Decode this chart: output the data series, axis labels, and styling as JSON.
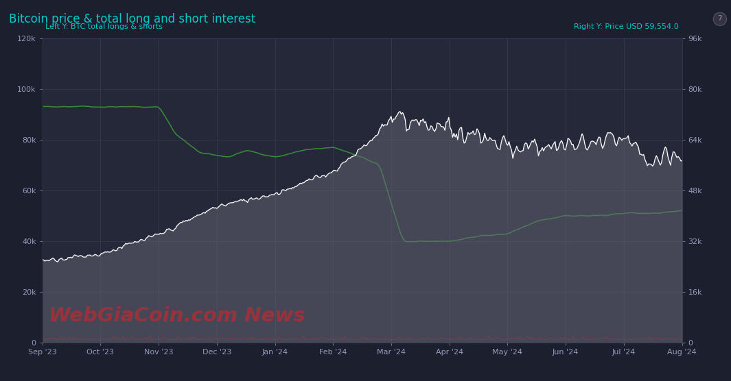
{
  "title": "Bitcoin price & total long and short interest",
  "title_color": "#00cccc",
  "bg_color": "#1c1f2e",
  "plot_bg_color": "#252838",
  "grid_color": "#353850",
  "left_label": "Left Y: BTC total longs & shorts",
  "right_label": "Right Y: Price USD 59,554.0",
  "label_color": "#00cccc",
  "watermark": "WebGiaCoin.com News",
  "watermark_color": "#cc0000",
  "left_ylim": [
    0,
    120000
  ],
  "right_ylim": [
    0,
    96000
  ],
  "left_yticks": [
    0,
    20000,
    40000,
    60000,
    80000,
    100000,
    120000
  ],
  "left_yticklabels": [
    "0",
    "20k",
    "40k",
    "60k",
    "80k",
    "100k",
    "120k"
  ],
  "right_yticks": [
    0,
    16000,
    32000,
    48000,
    64000,
    80000,
    96000
  ],
  "right_yticklabels": [
    "0",
    "16k",
    "32k",
    "48k",
    "64k",
    "80k",
    "96k"
  ],
  "x_dates": [
    "Sep '23",
    "Oct '23",
    "Nov '23",
    "Dec '23",
    "Jan '24",
    "Feb '24",
    "Mar '24",
    "Apr '24",
    "May '24",
    "Jun '24",
    "Jul '24",
    "Aug '24"
  ],
  "x_positions": [
    0,
    1,
    2,
    3,
    4,
    5,
    6,
    7,
    8,
    9,
    10,
    11
  ],
  "price_color": "#ffffff",
  "price_fill_color": "#666677",
  "oi_color": "#3a8c3a",
  "short_line_color": "#8b1a1a",
  "n_points": 500
}
